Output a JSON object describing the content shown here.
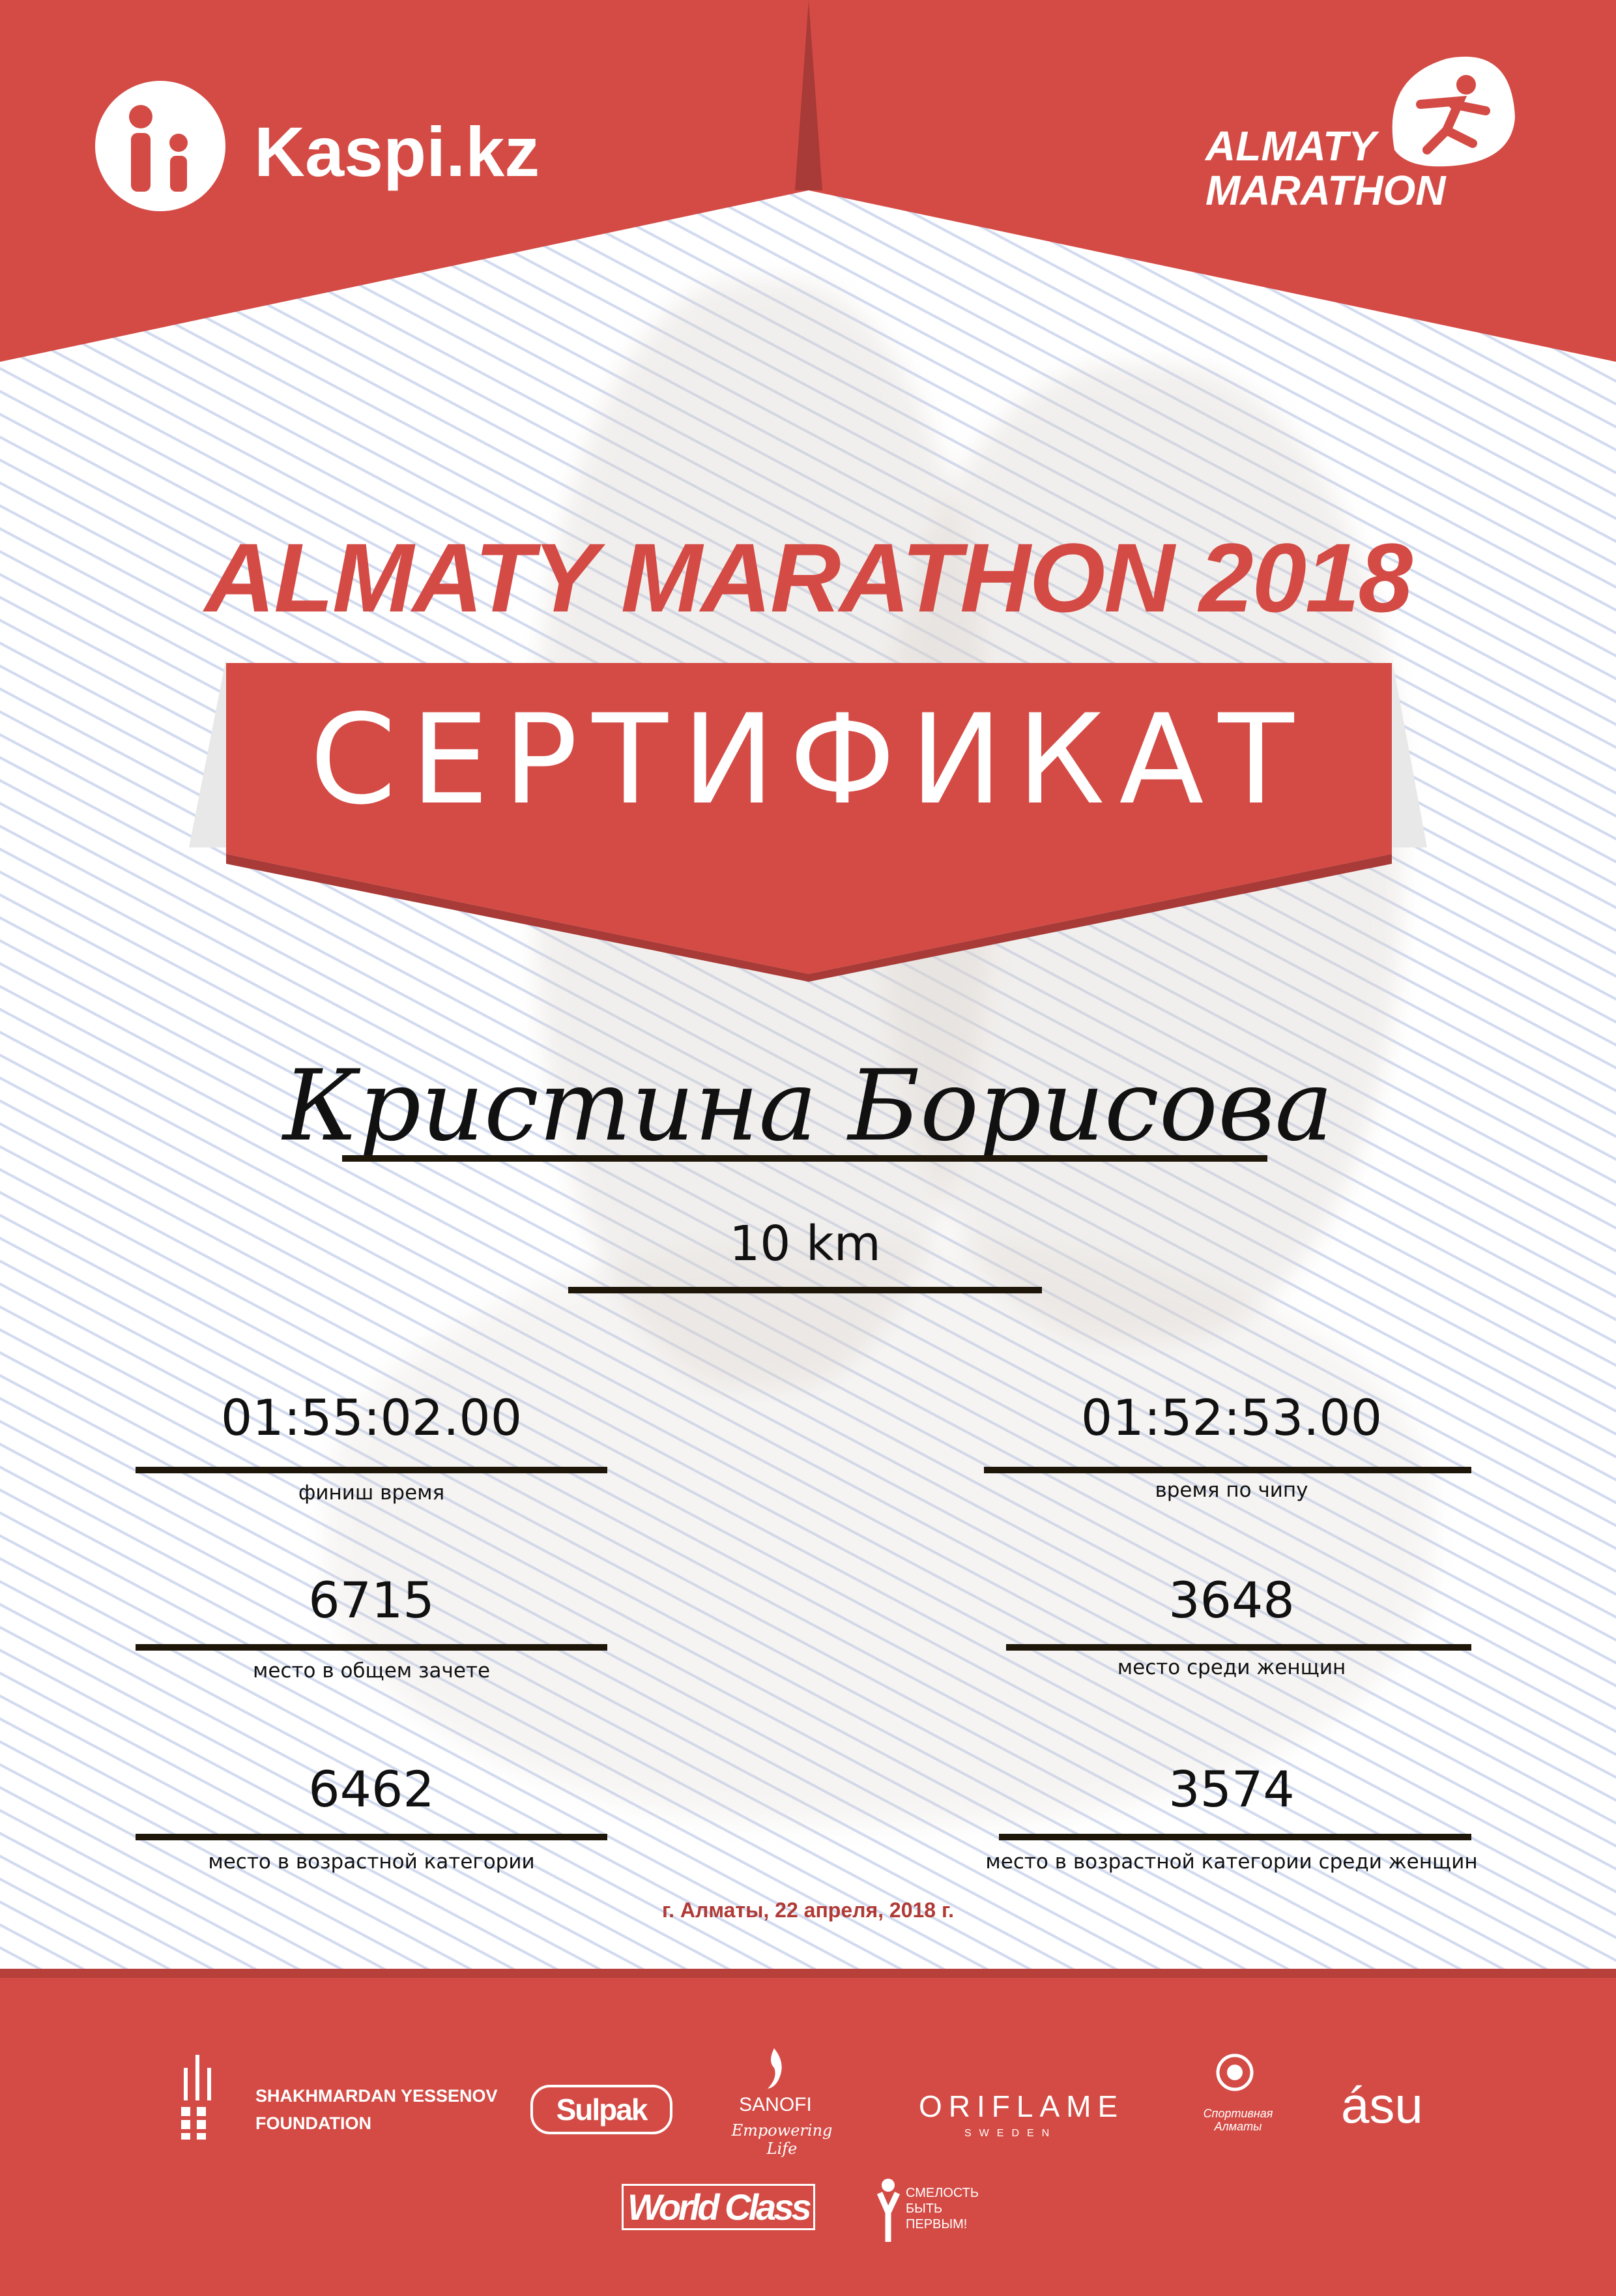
{
  "header": {
    "sponsor_logo": "Kaspi.kz",
    "event_logo_line1": "ALMATY",
    "event_logo_line2": "MARATHON"
  },
  "title": "ALMATY MARATHON 2018",
  "banner": "СЕРТИФИКАТ",
  "participant_name": "Кристина Борисова",
  "distance": "10 km",
  "results": [
    {
      "value": "01:55:02.00",
      "label": "финиш время"
    },
    {
      "value": "01:52:53.00",
      "label": "время по чипу"
    },
    {
      "value": "6715",
      "label": "место в общем зачете"
    },
    {
      "value": "3648",
      "label": "место среди женщин"
    },
    {
      "value": "6462",
      "label": "место в возрастной категории"
    },
    {
      "value": "3574",
      "label": "место в возрастной категории среди женщин"
    }
  ],
  "date_line": "г. Алматы, 22 апреля, 2018 г.",
  "sponsors": {
    "yessenov_line1": "SHAKHMARDAN YESSENOV",
    "yessenov_line2": "FOUNDATION",
    "sulpak": "Sulpak",
    "sanofi": "SANOFI",
    "sanofi_tagline": "Empowering Life",
    "oriflame": "ORIFLAME",
    "oriflame_sub": "SWEDEN",
    "sport_almaty": "Спортивная Алматы",
    "asu": "ásu",
    "worldclass": "World Class",
    "fund_line1": "СМЕЛОСТЬ",
    "fund_line2": "БЫТЬ",
    "fund_line3": "ПЕРВЫМ!"
  },
  "colors": {
    "brand_red": "#d44b45",
    "dark_red": "#a83a37",
    "line": "#1e1608"
  }
}
